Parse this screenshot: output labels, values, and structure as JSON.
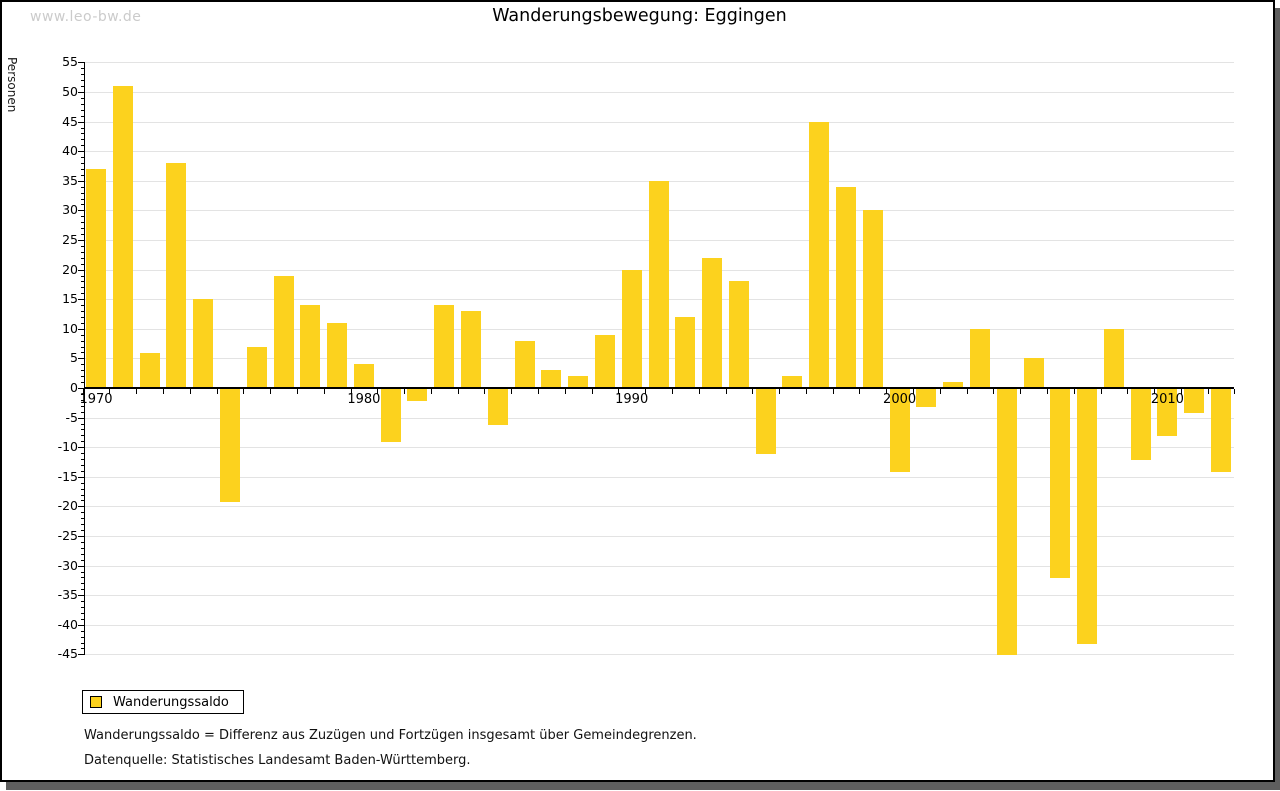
{
  "watermark": "www.leo-bw.de",
  "title": "Wanderungsbewegung: Eggingen",
  "y_axis_label": "Personen",
  "legend": {
    "label": "Wanderungssaldo"
  },
  "footnotes": {
    "definition": "Wanderungssaldo = Differenz aus Zuzügen und Fortzügen insgesamt über Gemeindegrenzen.",
    "source": "Datenquelle: Statistisches Landesamt Baden-Württemberg."
  },
  "colors": {
    "bar": "#FCD21E",
    "grid": "#e3e3e3",
    "axis": "#000000",
    "watermark": "#cbcbcb",
    "shadow": "#5e5e5e"
  },
  "chart_data": {
    "type": "bar",
    "series_name": "Wanderungssaldo",
    "title": "Wanderungsbewegung: Eggingen",
    "ylabel": "Personen",
    "ylim": [
      -45,
      55
    ],
    "ytick_step": 5,
    "grid": true,
    "legend_position": "bottom-left",
    "xticks_labeled": [
      1970,
      1980,
      1990,
      2000,
      2010
    ],
    "x": [
      1970,
      1971,
      1972,
      1973,
      1974,
      1975,
      1976,
      1977,
      1978,
      1979,
      1980,
      1981,
      1982,
      1983,
      1984,
      1985,
      1986,
      1987,
      1988,
      1989,
      1990,
      1991,
      1992,
      1993,
      1994,
      1995,
      1996,
      1997,
      1998,
      1999,
      2000,
      2001,
      2002,
      2003,
      2004,
      2005,
      2006,
      2007,
      2008,
      2009,
      2010,
      2011,
      2012
    ],
    "values": [
      37,
      51,
      6,
      38,
      15,
      -19,
      7,
      19,
      14,
      11,
      4,
      -9,
      -2,
      14,
      13,
      -6,
      8,
      3,
      2,
      9,
      20,
      35,
      12,
      22,
      18,
      -11,
      2,
      45,
      34,
      30,
      -14,
      -3,
      1,
      10,
      -45,
      5,
      -32,
      -43,
      10,
      -12,
      -8,
      -4,
      -14
    ]
  }
}
